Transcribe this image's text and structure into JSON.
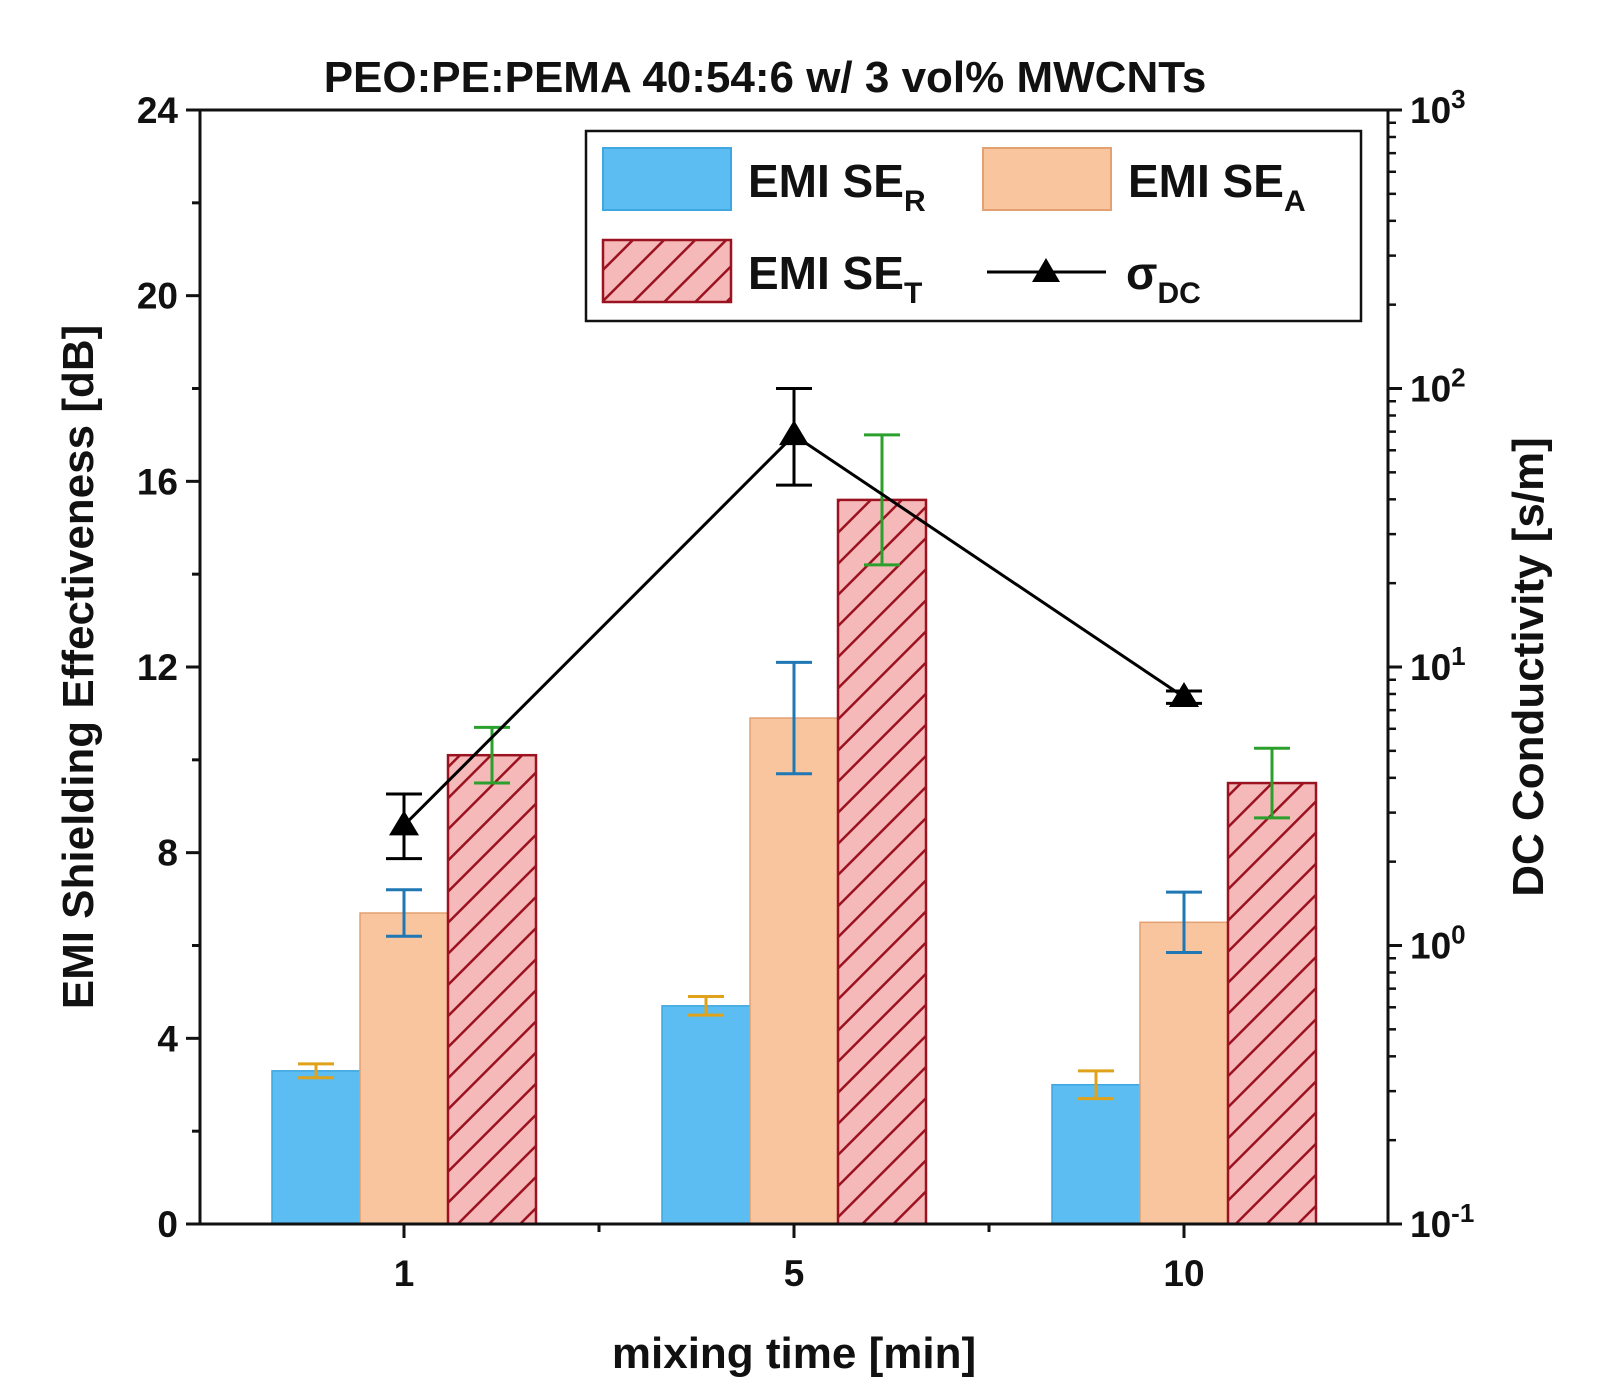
{
  "chart_data": {
    "type": "bar",
    "title": "PEO:PE:PEMA 40:54:6 w/ 3 vol% MWCNTs",
    "xlabel": "mixing time [min]",
    "ylabel": "EMI Shielding Effectiveness [dB]",
    "y2label": "DC Conductivity [s/m]",
    "categories": [
      "1",
      "5",
      "10"
    ],
    "ylim": [
      0,
      24
    ],
    "yticks": [
      "0",
      "4",
      "8",
      "12",
      "16",
      "20",
      "24"
    ],
    "y2scale": "log",
    "y2lim": [
      0.1,
      1000
    ],
    "y2ticks": [
      {
        "base": "10",
        "exp": "-1"
      },
      {
        "base": "10",
        "exp": "0"
      },
      {
        "base": "10",
        "exp": "1"
      },
      {
        "base": "10",
        "exp": "2"
      },
      {
        "base": "10",
        "exp": "3"
      }
    ],
    "series": [
      {
        "name": "EMI SE",
        "sub": "R",
        "type": "bar",
        "axis": "left",
        "color": "#5bbdf2",
        "edge": "#3fa6e0",
        "errcolor": "#e0a21a",
        "values": [
          3.3,
          4.7,
          3.0
        ],
        "errors": [
          0.15,
          0.2,
          0.3
        ]
      },
      {
        "name": "EMI SE",
        "sub": "A",
        "type": "bar",
        "axis": "left",
        "color": "#f8c59e",
        "edge": "#e3a070",
        "errcolor": "#1f77b4",
        "values": [
          6.7,
          10.9,
          6.5
        ],
        "errors": [
          0.5,
          1.2,
          0.65
        ]
      },
      {
        "name": "EMI SE",
        "sub": "T",
        "type": "bar",
        "axis": "left",
        "color": "#f6b9b9",
        "edge": "#9b1220",
        "hatch": true,
        "errcolor": "#2ca02c",
        "values": [
          10.1,
          15.6,
          9.5
        ],
        "errors": [
          0.6,
          1.4,
          0.75
        ]
      },
      {
        "name": "σ",
        "sub": "DC",
        "type": "line",
        "axis": "right",
        "marker": "triangle",
        "color": "#000000",
        "values": [
          2.7,
          68,
          7.8
        ],
        "errors_low": [
          2.05,
          45,
          7.4
        ],
        "errors_high": [
          3.5,
          100,
          8.2
        ]
      }
    ],
    "legend": "top-right",
    "grid": false
  }
}
